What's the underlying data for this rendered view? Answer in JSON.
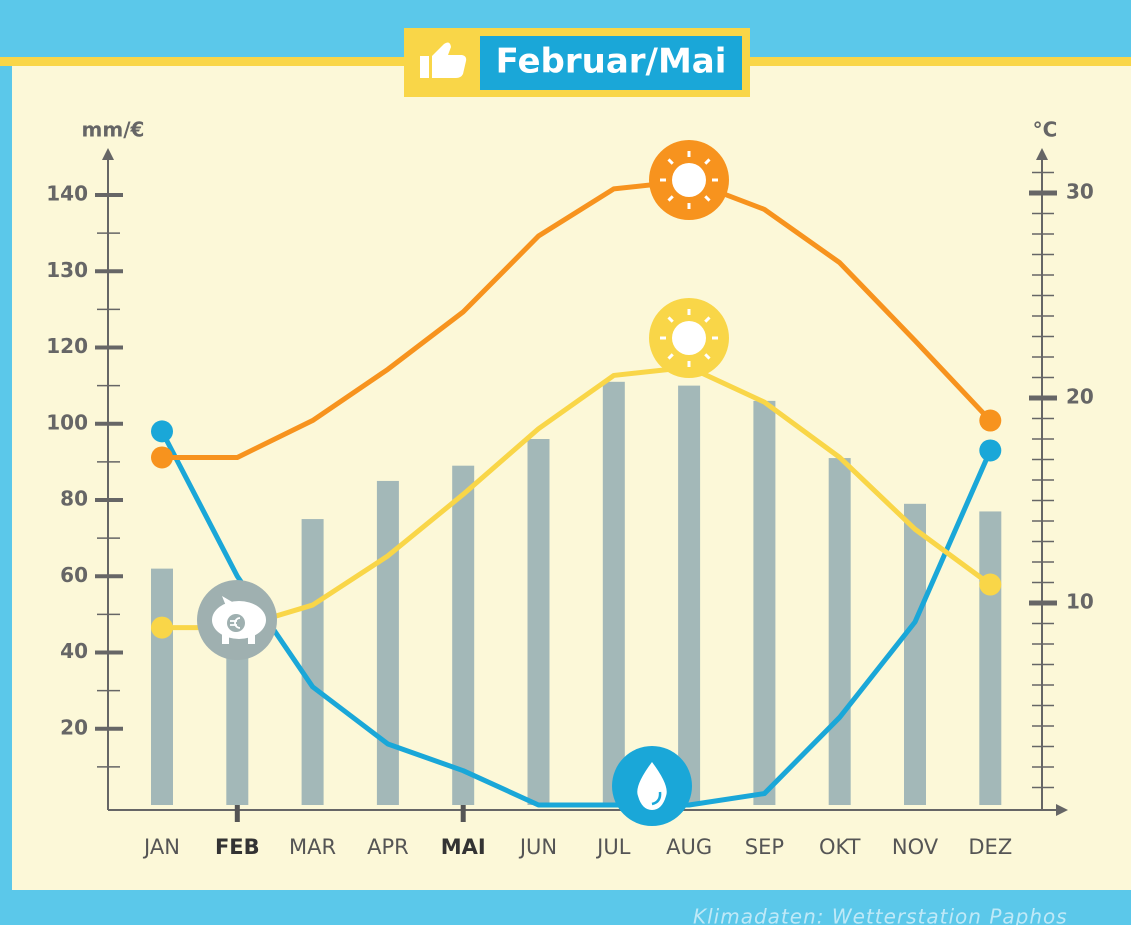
{
  "chart_data": {
    "type": "combo",
    "title": "Februar/Mai",
    "y_label": "mm/€",
    "y2_label": "°C",
    "source": "Klimadaten: Wetterstation Paphos",
    "categories": [
      "JAN",
      "FEB",
      "MAR",
      "APR",
      "MAI",
      "JUN",
      "JUL",
      "AUG",
      "SEP",
      "OKT",
      "NOV",
      "DEZ"
    ],
    "highlight_categories": [
      "FEB",
      "MAI"
    ],
    "ylim": [
      0,
      140
    ],
    "yticks": [
      20,
      40,
      60,
      80,
      100,
      120,
      130,
      140
    ],
    "y2lim": [
      0,
      32
    ],
    "y2ticks": [
      10,
      20,
      30
    ],
    "series": [
      {
        "type": "bar",
        "axis": "y",
        "color": "#a3b8b8",
        "values": [
          62,
          55,
          75,
          85,
          89,
          96,
          111,
          110,
          106,
          91,
          79,
          77
        ]
      },
      {
        "type": "line",
        "axis": "y",
        "color": "#1aa7d8",
        "values": [
          98,
          60,
          31,
          16,
          9,
          0,
          0,
          0,
          3,
          23,
          48,
          93
        ]
      },
      {
        "type": "line",
        "axis": "y2",
        "color": "#f7931e",
        "values": [
          17.1,
          17.1,
          18.9,
          21.4,
          24.2,
          27.9,
          30.2,
          30.6,
          29.2,
          26.6,
          22.8,
          18.9
        ]
      },
      {
        "type": "line",
        "axis": "y2",
        "color": "#f9d648",
        "values": [
          8.8,
          8.8,
          9.9,
          12.3,
          15.3,
          18.5,
          21.1,
          21.5,
          19.8,
          17.1,
          13.6,
          10.9
        ]
      }
    ]
  }
}
